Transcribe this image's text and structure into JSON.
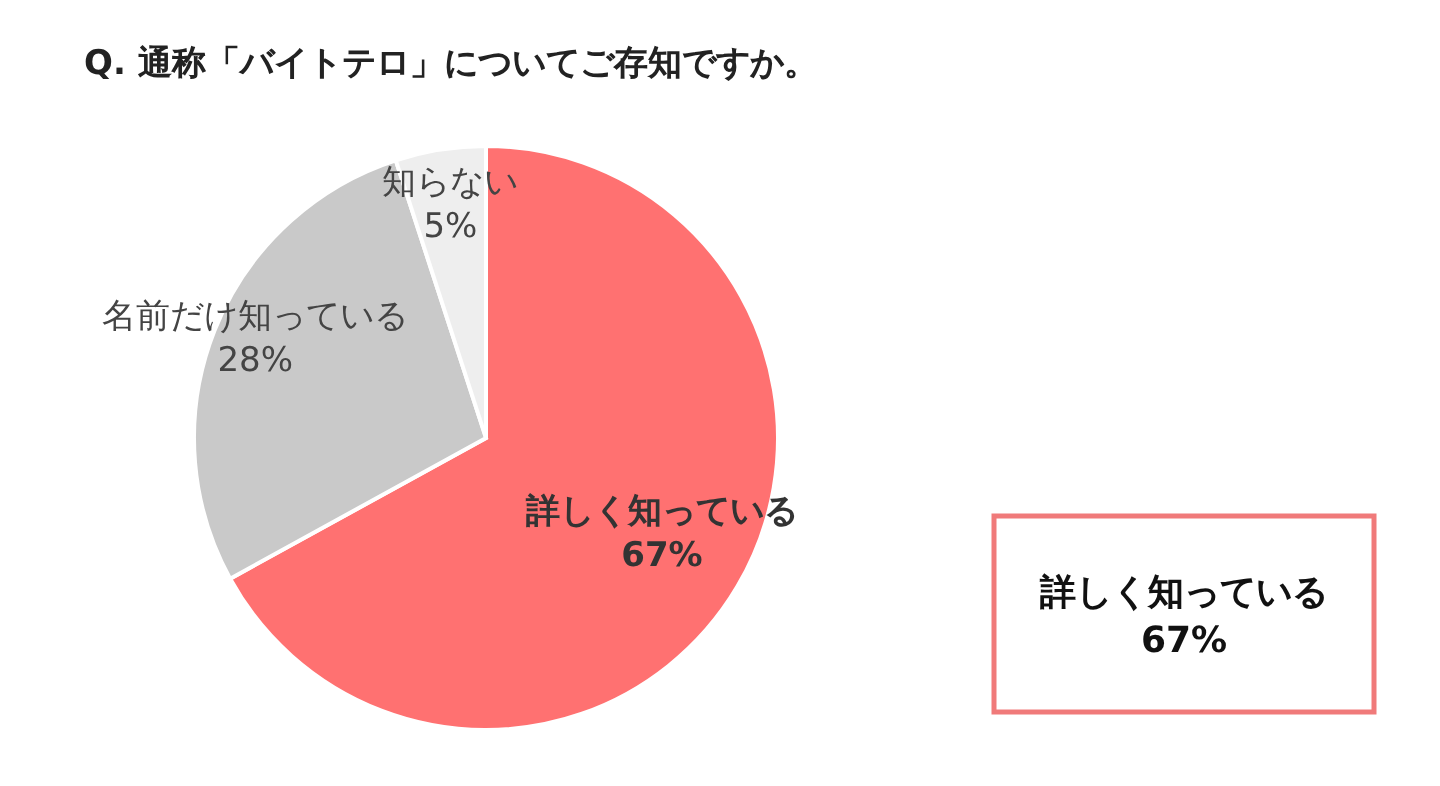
{
  "chart_data": {
    "type": "pie",
    "title": "Q.  通称「バイトテロ」についてご存知ですか。",
    "categories": [
      "詳しく知っている",
      "名前だけ知っている",
      "知らない"
    ],
    "values": [
      67,
      28,
      5
    ],
    "colors": [
      "#ff7171",
      "#c9c9c9",
      "#eeeeee"
    ],
    "value_labels": [
      "67%",
      "28%",
      "5%"
    ],
    "annotations": [
      "詳しく知っている",
      "67%"
    ]
  }
}
